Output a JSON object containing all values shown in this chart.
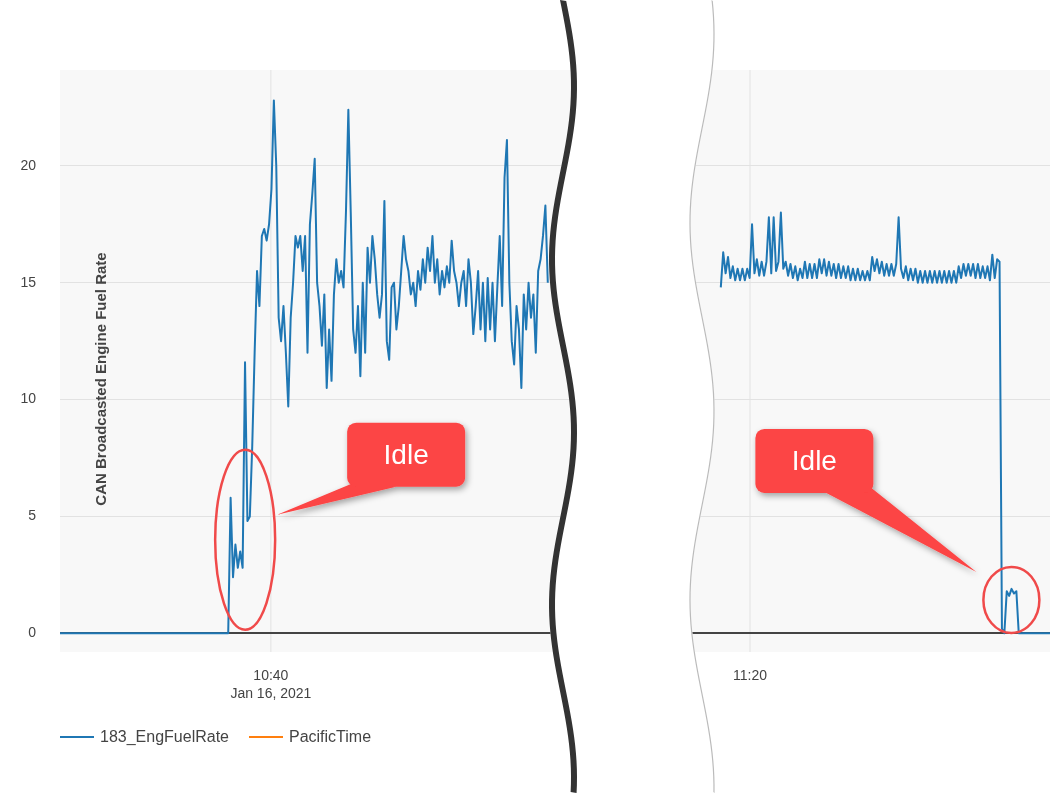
{
  "chart_data": {
    "type": "line",
    "ylabel": "CAN Broadcasted Engine Fuel Rate",
    "ylim": [
      -0.8,
      24.1
    ],
    "yticks": [
      0,
      5,
      10,
      15,
      20
    ],
    "grid": "y",
    "legend": "bottom left",
    "tick_labels": "y",
    "categories": [
      null,
      null,
      null,
      null,
      null,
      null,
      null,
      null,
      null,
      null,
      null,
      null,
      null,
      null,
      null,
      null,
      null,
      null,
      null,
      null,
      null,
      null,
      null,
      null,
      null,
      null,
      null,
      null,
      null,
      null,
      null,
      null,
      null,
      null,
      null,
      null,
      null,
      null,
      null,
      null,
      null,
      null,
      null,
      null,
      null,
      null,
      null,
      null,
      null,
      null,
      null,
      null,
      null,
      null,
      null,
      null,
      null,
      null,
      null,
      null,
      null,
      null,
      null,
      null,
      null,
      null,
      null,
      null,
      null,
      null,
      null,
      null,
      null,
      null,
      null,
      null,
      null,
      null,
      null,
      null,
      null,
      null,
      null,
      null,
      null,
      null,
      null,
      null,
      null,
      null,
      null,
      null,
      null,
      null,
      null,
      null,
      null,
      null,
      null,
      null,
      null,
      null,
      null,
      null,
      null,
      null,
      null,
      null,
      null,
      null,
      null,
      null,
      null,
      null,
      null,
      null,
      null,
      null,
      null,
      null,
      null,
      null,
      null,
      null,
      null,
      null,
      null,
      null,
      null,
      null,
      null,
      null,
      null,
      null,
      null,
      null,
      null,
      null,
      null,
      null,
      null,
      null,
      null,
      null,
      null,
      null,
      null,
      null,
      null,
      null,
      null,
      null,
      null,
      null,
      null,
      null,
      null,
      null,
      null,
      null,
      null,
      null,
      null,
      null,
      null,
      null,
      null,
      null,
      null,
      null,
      null,
      null,
      null,
      null,
      null,
      null,
      null,
      null,
      null,
      null,
      null,
      null,
      null,
      null,
      null,
      null,
      null,
      null,
      null,
      null,
      null,
      null,
      null,
      null,
      null,
      null,
      null,
      null,
      null,
      null,
      null,
      null,
      null,
      null,
      null,
      null,
      null,
      null,
      null,
      null,
      null,
      null,
      null,
      null,
      null,
      null,
      null,
      null,
      null,
      null,
      null,
      null,
      null,
      null,
      null,
      null,
      null,
      null,
      null,
      null,
      null,
      null,
      null,
      null,
      null,
      null,
      null,
      null,
      null,
      null,
      null,
      null,
      null,
      null,
      null,
      null,
      null,
      null,
      null,
      null,
      null,
      null,
      null,
      null,
      null,
      null,
      null,
      null,
      null,
      null,
      null,
      null,
      null,
      null,
      null,
      null,
      null,
      null,
      null,
      null,
      null,
      null,
      null,
      null,
      null,
      null,
      null,
      null,
      null,
      null,
      null,
      null,
      null,
      null,
      null,
      null,
      null,
      null,
      null,
      null,
      null,
      null,
      null,
      null,
      null,
      null,
      null,
      null,
      null,
      null,
      null,
      null,
      null,
      null,
      null,
      null,
      null,
      null,
      null,
      null,
      null,
      null,
      null,
      null,
      null,
      null,
      null,
      null,
      null,
      null,
      null,
      null,
      null,
      null,
      null,
      null,
      null,
      null,
      null,
      null,
      null,
      null,
      null,
      null,
      null,
      null,
      null,
      null,
      null,
      null,
      null,
      null,
      null,
      null,
      null,
      null,
      null,
      null,
      null,
      null,
      null,
      null,
      null,
      null,
      null,
      null,
      null,
      null,
      null,
      null,
      null,
      null,
      null,
      null,
      null,
      null,
      null,
      null,
      null,
      null,
      null,
      null,
      null,
      null,
      null,
      null,
      null,
      null,
      null,
      null,
      null,
      null,
      null,
      null,
      null,
      null,
      null,
      null,
      null,
      null,
      null,
      null,
      null,
      null,
      null,
      null,
      null,
      null,
      null,
      null,
      null,
      null,
      null,
      null,
      null,
      null,
      null,
      null,
      null,
      null,
      null,
      null,
      null
    ],
    "series": [
      {
        "name": "183_EngFuelRate",
        "color": "#1f77b4",
        "values": [
          0,
          0,
          0,
          0,
          0,
          0,
          0,
          0,
          0,
          0,
          0,
          0,
          0,
          0,
          0,
          0,
          0,
          0,
          0,
          0,
          0,
          0,
          0,
          0,
          0,
          0,
          0,
          0,
          0,
          0,
          0,
          0,
          0,
          0,
          0,
          0,
          0,
          0,
          0,
          0,
          0,
          0,
          0,
          0,
          0,
          0,
          0,
          0,
          0,
          0,
          0,
          0,
          0,
          0,
          0,
          0,
          0,
          0,
          0,
          0,
          0,
          0,
          0,
          0,
          0,
          0,
          0,
          0,
          0,
          0,
          0,
          5.8,
          2.4,
          3.8,
          2.8,
          3.5,
          2.8,
          11.6,
          4.8,
          5,
          8,
          12,
          15.5,
          14,
          17,
          17.3,
          16.8,
          17.5,
          19,
          22.8,
          20,
          13.5,
          12.5,
          14,
          12,
          9.7,
          13.5,
          15,
          17,
          16.5,
          17,
          15.5,
          17,
          12,
          17.5,
          18.8,
          20.3,
          15,
          14,
          12.3,
          14.5,
          10.5,
          13,
          10.8,
          14.5,
          16,
          15,
          15.5,
          14.8,
          18,
          22.4,
          18,
          13,
          12,
          14,
          11,
          15,
          12,
          16.5,
          15,
          17,
          16,
          14.5,
          13.5,
          14.5,
          18.5,
          12.5,
          11.7,
          14.8,
          15,
          13,
          14,
          15.5,
          17,
          16,
          15.5,
          14.5,
          15,
          14,
          15.5,
          14.7,
          16,
          15,
          16.5,
          15.5,
          17,
          15,
          16,
          14.5,
          15.5,
          14.8,
          15.7,
          15,
          16.8,
          15.5,
          15,
          14,
          15,
          15.5,
          14,
          16,
          15,
          12.8,
          14,
          15.5,
          13,
          15,
          12.5,
          15.2,
          13,
          15,
          12.5,
          14.8,
          17,
          14,
          19.5,
          21.1,
          15,
          12.5,
          11.5,
          14,
          13,
          10.5,
          14.5,
          13,
          15,
          13.5,
          14.5,
          12,
          15.5,
          16,
          17,
          18.3,
          15,
          null,
          null,
          null,
          null,
          null,
          null,
          null,
          null,
          null,
          null,
          null,
          null,
          null,
          null,
          null,
          null,
          null,
          null,
          null,
          null,
          null,
          null,
          null,
          null,
          null,
          null,
          null,
          null,
          null,
          null,
          null,
          null,
          null,
          null,
          null,
          null,
          null,
          null,
          null,
          null,
          null,
          null,
          null,
          null,
          null,
          null,
          null,
          null,
          null,
          null,
          null,
          null,
          null,
          null,
          null,
          null,
          null,
          null,
          null,
          null,
          null,
          null,
          null,
          null,
          null,
          null,
          null,
          null,
          null,
          null,
          null,
          14.8,
          16.3,
          15.4,
          16.1,
          15.2,
          15.7,
          15.1,
          15.6,
          15.1,
          15.6,
          15.1,
          15.6,
          15.2,
          17.5,
          15.4,
          16,
          15.3,
          15.9,
          15.3,
          15.9,
          17.8,
          15.4,
          17.8,
          15.5,
          15.9,
          18,
          15.6,
          15.9,
          15.3,
          15.8,
          15.2,
          15.7,
          15.1,
          15.6,
          15.2,
          15.9,
          15.2,
          15.8,
          15.2,
          15.8,
          15.2,
          16,
          15.4,
          16,
          15.3,
          15.9,
          15.3,
          15.8,
          15.2,
          15.8,
          15.2,
          15.7,
          15.2,
          15.7,
          15.1,
          15.6,
          15.1,
          15.6,
          15.1,
          15.5,
          15.1,
          15.5,
          15.1,
          16.1,
          15.5,
          16,
          15.4,
          15.9,
          15.3,
          15.8,
          15.3,
          15.8,
          15.3,
          15.8,
          17.8,
          15.6,
          15.2,
          15.7,
          15.1,
          15.6,
          15.1,
          15.6,
          15,
          15.5,
          15,
          15.5,
          15,
          15.5,
          15,
          15.5,
          15,
          15.5,
          15,
          15.5,
          15,
          15.5,
          15,
          15.5,
          15,
          15.7,
          15.2,
          15.8,
          15.3,
          15.8,
          15.3,
          15.8,
          15.2,
          15.8,
          15.2,
          15.7,
          15.2,
          15.7,
          15.1,
          16.2,
          15.2,
          16,
          15.9,
          0.2,
          0,
          1.8,
          1.6,
          1.9,
          1.7,
          1.8,
          0,
          0,
          0,
          0,
          0,
          0,
          0,
          0,
          0,
          0,
          0,
          0,
          0,
          0
        ]
      },
      {
        "name": "PacificTime",
        "color": "#ff7f0e",
        "values": [
          null,
          null,
          null,
          null,
          null,
          null,
          null,
          null,
          null,
          null,
          null,
          null,
          null,
          null,
          null,
          null,
          null,
          null,
          null,
          null,
          null,
          null,
          null,
          null,
          null,
          null,
          null,
          null,
          null,
          null,
          null,
          null,
          null,
          null,
          null,
          null,
          null,
          null,
          null,
          null,
          null,
          null,
          null,
          null,
          null,
          null,
          null,
          null,
          null,
          null,
          null,
          null,
          null,
          null,
          null,
          null,
          null,
          null,
          null,
          null,
          null,
          null,
          null,
          null,
          null,
          null,
          null,
          null,
          null,
          null,
          null,
          null,
          null,
          null,
          null,
          null,
          null,
          null,
          null,
          null,
          null,
          null,
          null,
          null,
          null,
          null,
          null,
          null,
          null,
          null,
          null,
          null,
          null,
          null,
          null,
          null,
          null,
          null,
          null,
          null,
          null,
          null,
          null,
          null,
          null,
          null,
          null,
          null,
          null,
          null,
          null,
          null,
          null,
          null,
          null,
          null,
          null,
          null,
          null,
          null,
          null,
          null,
          null,
          null,
          null,
          null,
          null,
          null,
          null,
          null,
          null,
          null,
          null,
          null,
          null,
          null,
          null,
          null,
          null,
          null,
          null,
          null,
          null,
          null,
          null,
          null,
          null,
          null,
          null,
          null,
          null,
          null,
          null,
          null,
          null,
          null,
          null,
          null,
          null,
          null,
          null,
          null,
          null,
          null,
          null,
          null,
          null,
          null,
          null,
          null,
          null,
          null,
          null,
          null,
          null,
          null,
          null,
          null,
          null,
          null,
          null,
          null,
          null,
          null,
          null,
          null,
          null,
          null,
          null,
          null,
          null,
          null,
          null,
          null,
          null,
          null,
          null,
          null,
          null,
          null,
          null,
          null,
          null,
          null,
          null,
          null,
          null,
          null,
          null,
          null,
          null,
          null,
          null,
          null,
          null,
          null,
          null,
          null,
          null,
          null,
          null,
          null,
          null,
          null,
          null,
          null,
          null,
          null,
          null,
          null,
          null,
          null,
          null,
          null,
          null,
          null,
          null,
          null,
          null,
          null,
          null,
          null,
          null,
          null,
          null,
          null,
          null,
          null,
          null,
          null,
          null,
          null,
          null,
          null,
          null,
          null,
          null,
          null,
          null,
          null,
          null,
          null,
          null,
          null,
          null,
          null,
          null,
          null,
          null,
          null,
          null,
          null,
          null,
          null,
          null,
          null,
          null,
          null,
          null,
          null,
          null,
          null,
          null,
          null,
          null,
          null,
          null,
          null,
          null,
          null,
          null,
          null,
          null,
          null,
          null,
          null,
          null,
          null,
          null,
          null,
          null,
          null,
          null,
          null,
          null,
          null,
          null,
          null,
          null,
          null,
          null,
          null,
          null,
          null,
          null,
          null,
          null,
          null,
          null,
          null,
          null,
          null,
          null,
          null,
          null,
          null,
          null,
          null,
          null,
          null,
          null,
          null,
          null,
          null,
          null,
          null,
          null,
          null,
          null,
          null,
          null,
          null,
          null,
          null,
          null,
          null,
          null,
          null,
          null,
          null,
          null,
          null,
          null,
          null,
          null,
          null,
          null,
          null,
          null,
          null,
          null,
          null,
          null,
          null,
          null,
          null,
          null,
          null,
          null,
          null,
          null,
          null,
          null,
          null,
          null,
          null,
          null,
          null,
          null,
          null,
          null,
          null,
          null,
          null,
          null,
          null,
          null,
          null,
          null,
          null,
          null,
          null,
          null,
          null,
          null,
          null,
          null,
          null,
          null,
          null,
          null,
          null,
          null,
          null,
          null,
          null,
          null,
          null,
          null,
          null,
          null,
          null,
          null
        ]
      }
    ],
    "annotations": [
      "10:40",
      "Jan 16, 2021",
      "11:20",
      "Idle",
      "Idle"
    ]
  }
}
